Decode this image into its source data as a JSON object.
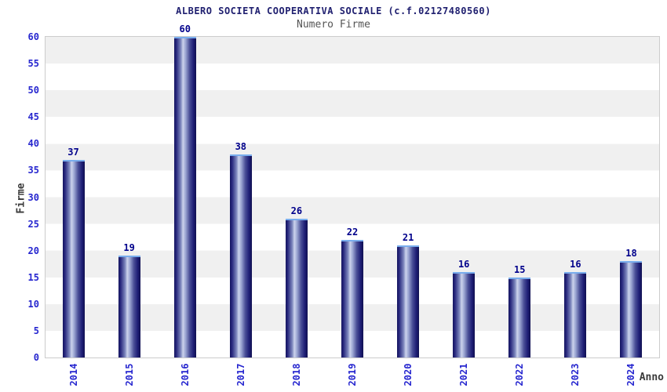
{
  "header": {
    "title": "ALBERO SOCIETA COOPERATIVA SOCIALE (c.f.02127480560)",
    "subtitle": "Numero Firme"
  },
  "chart_data": {
    "type": "bar",
    "title": "ALBERO SOCIETA COOPERATIVA SOCIALE (c.f.02127480560)",
    "subtitle": "Numero Firme",
    "categories": [
      "2014",
      "2015",
      "2016",
      "2017",
      "2018",
      "2019",
      "2020",
      "2021",
      "2022",
      "2023",
      "2024"
    ],
    "values": [
      37,
      19,
      60,
      38,
      26,
      22,
      21,
      16,
      15,
      16,
      18
    ],
    "xlabel": "Anno",
    "ylabel": "Firme",
    "ylim": [
      0,
      60
    ],
    "ytick_step": 5,
    "yticks": [
      0,
      5,
      10,
      15,
      20,
      25,
      30,
      35,
      40,
      45,
      50,
      55,
      60
    ],
    "grid": "alternating-horizontal-bands",
    "legend": "none",
    "bar_value_labels_shown": true
  },
  "colors": {
    "title_navy": "#202070",
    "value_label_navy": "#00008b",
    "tick_blue": "#2626cf",
    "axis_label_gray": "#3a3a3a",
    "subtitle_gray": "#555555",
    "band_gray": "#f0f0f0",
    "plot_border_gray": "#cccccc",
    "bar_dark": "#141460",
    "bar_highlight": "#ccd3ec",
    "bar_top_edge": "#79aded",
    "background": "#ffffff"
  }
}
